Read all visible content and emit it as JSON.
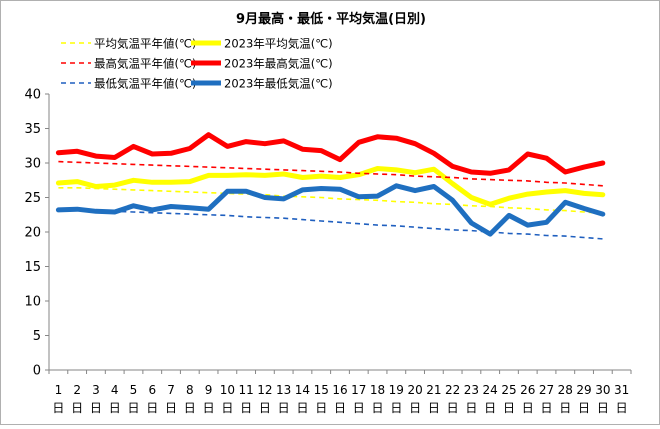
{
  "chart_data": {
    "type": "line",
    "title": "9月最高・最低・平均気温(日別)",
    "xlabel": "",
    "ylabel": "",
    "ylim": [
      0,
      40
    ],
    "yticks": [
      0,
      5,
      10,
      15,
      20,
      25,
      30,
      35,
      40
    ],
    "grid": false,
    "legend_position": "top",
    "day_suffix": "日",
    "x": [
      1,
      2,
      3,
      4,
      5,
      6,
      7,
      8,
      9,
      10,
      11,
      12,
      13,
      14,
      15,
      16,
      17,
      18,
      19,
      20,
      21,
      22,
      23,
      24,
      25,
      26,
      27,
      28,
      29,
      30,
      31
    ],
    "series": [
      {
        "name": "平均気温平年値(℃)",
        "color": "#ffff00",
        "style": "dashed",
        "values": [
          26.4,
          26.4,
          26.3,
          26.2,
          26.1,
          26.0,
          25.9,
          25.8,
          25.7,
          25.6,
          25.5,
          25.4,
          25.2,
          25.1,
          25.0,
          24.8,
          24.7,
          24.6,
          24.4,
          24.3,
          24.1,
          24.0,
          23.8,
          23.7,
          23.5,
          23.4,
          23.2,
          23.1,
          22.9,
          22.7,
          null
        ]
      },
      {
        "name": "2023年平均気温(℃)",
        "color": "#ffff00",
        "style": "solid",
        "values": [
          27.1,
          27.3,
          26.6,
          26.8,
          27.5,
          27.2,
          27.2,
          27.3,
          28.2,
          28.2,
          28.3,
          28.2,
          28.4,
          27.9,
          28.1,
          27.9,
          28.3,
          29.2,
          29.0,
          28.6,
          29.1,
          27.0,
          25.0,
          24.0,
          24.9,
          25.5,
          25.8,
          26.0,
          25.6,
          25.4,
          null
        ]
      },
      {
        "name": "最高気温平年値(℃)",
        "color": "#ff0000",
        "style": "dashed",
        "values": [
          30.2,
          30.1,
          30.0,
          29.9,
          29.8,
          29.7,
          29.6,
          29.5,
          29.4,
          29.3,
          29.2,
          29.1,
          29.0,
          28.9,
          28.8,
          28.7,
          28.5,
          28.4,
          28.3,
          28.1,
          28.0,
          27.9,
          27.7,
          27.6,
          27.5,
          27.4,
          27.2,
          27.1,
          26.9,
          26.7,
          null
        ]
      },
      {
        "name": "2023年最高気温(℃)",
        "color": "#ff0000",
        "style": "solid",
        "values": [
          31.5,
          31.7,
          31.0,
          30.8,
          32.4,
          31.3,
          31.4,
          32.1,
          34.1,
          32.4,
          33.1,
          32.8,
          33.2,
          32.0,
          31.8,
          30.5,
          33.0,
          33.8,
          33.6,
          32.8,
          31.4,
          29.5,
          28.7,
          28.5,
          29.0,
          31.3,
          30.7,
          28.7,
          29.4,
          30.0,
          null
        ]
      },
      {
        "name": "最低気温平年値(℃)",
        "color": "#1f5fbf",
        "style": "dashed",
        "values": [
          23.3,
          23.2,
          23.1,
          23.0,
          22.9,
          22.8,
          22.7,
          22.6,
          22.5,
          22.4,
          22.2,
          22.1,
          22.0,
          21.8,
          21.6,
          21.4,
          21.2,
          21.0,
          20.9,
          20.7,
          20.5,
          20.3,
          20.2,
          20.0,
          19.8,
          19.7,
          19.5,
          19.4,
          19.2,
          19.0,
          null
        ]
      },
      {
        "name": "2023年最低気温(℃)",
        "color": "#1f6fc0",
        "style": "solid",
        "values": [
          23.2,
          23.3,
          23.0,
          22.9,
          23.8,
          23.2,
          23.7,
          23.5,
          23.3,
          25.9,
          25.9,
          25.0,
          24.8,
          26.1,
          26.3,
          26.2,
          25.1,
          25.2,
          26.7,
          26.0,
          26.6,
          24.6,
          21.3,
          19.7,
          22.4,
          21.0,
          21.4,
          24.3,
          23.4,
          22.6,
          null
        ]
      }
    ]
  }
}
